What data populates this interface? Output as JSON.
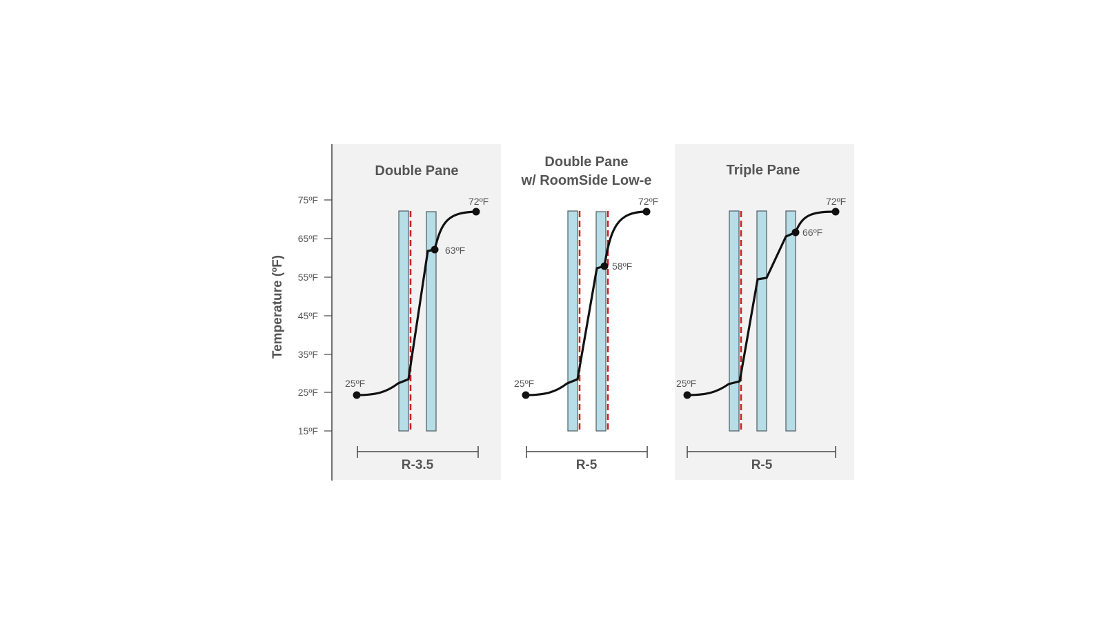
{
  "diagram": {
    "y_axis": {
      "label": "Temperature (ºF)",
      "ticks": [
        "75ºF",
        "65ºF",
        "55ºF",
        "45ºF",
        "35ºF",
        "25ºF",
        "15ºF"
      ]
    },
    "panels": [
      {
        "title_lines": [
          "Double Pane"
        ],
        "r_value": "R-3.5",
        "shaded": true,
        "panes": 2,
        "lowe_after_panes": [
          1
        ],
        "points": [
          {
            "label": "25ºF"
          },
          {
            "label": "63ºF"
          },
          {
            "label": "72ºF"
          }
        ]
      },
      {
        "title_lines": [
          "Double Pane",
          "w/ RoomSide Low-e"
        ],
        "r_value": "R-5",
        "shaded": false,
        "panes": 2,
        "lowe_after_panes": [
          1,
          2
        ],
        "points": [
          {
            "label": "25ºF"
          },
          {
            "label": "58ºF"
          },
          {
            "label": "72ºF"
          }
        ]
      },
      {
        "title_lines": [
          "Triple Pane"
        ],
        "r_value": "R-5",
        "shaded": true,
        "panes": 3,
        "lowe_after_panes": [
          1
        ],
        "points": [
          {
            "label": "25ºF"
          },
          {
            "label": "66ºF"
          },
          {
            "label": "72ºF"
          }
        ]
      }
    ],
    "colors": {
      "panel_bg": "#f2f2f2",
      "glass_fill": "#b7dde6",
      "glass_stroke": "#4d5b61",
      "lowe": "#cc1f1f",
      "curve": "#111111",
      "text": "#555555",
      "axis": "#444444"
    }
  }
}
